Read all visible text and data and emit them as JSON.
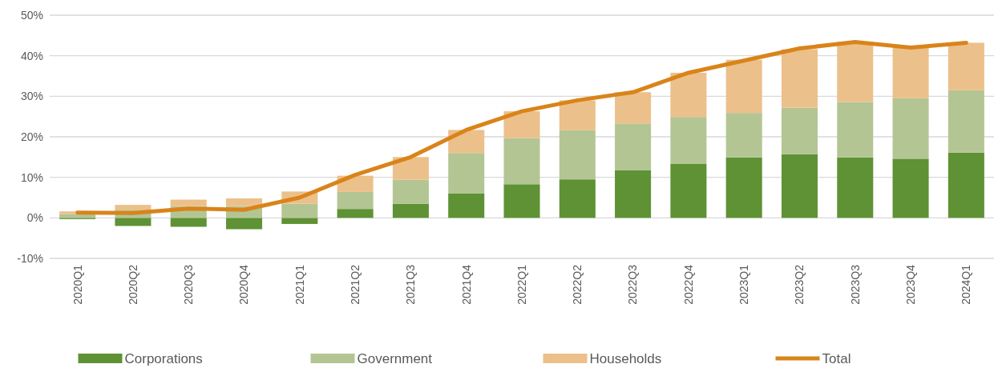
{
  "chart_data": {
    "type": "bar",
    "stacked": true,
    "categories": [
      "2020Q1",
      "2020Q2",
      "2020Q3",
      "2020Q4",
      "2021Q1",
      "2021Q2",
      "2021Q3",
      "2021Q4",
      "2022Q1",
      "2022Q2",
      "2022Q3",
      "2022Q4",
      "2023Q1",
      "2023Q2",
      "2023Q3",
      "2023Q4",
      "2024Q1"
    ],
    "series": [
      {
        "name": "Corporations",
        "color": "#5e9234",
        "values": [
          -0.3,
          -2.0,
          -2.2,
          -2.8,
          -1.5,
          2.2,
          3.5,
          6.0,
          8.3,
          9.5,
          11.8,
          13.3,
          14.9,
          15.7,
          14.9,
          14.6,
          16.1
        ]
      },
      {
        "name": "Government",
        "color": "#b4c594",
        "values": [
          0.9,
          2.0,
          2.9,
          2.9,
          3.5,
          4.2,
          5.9,
          10.0,
          11.4,
          12.1,
          11.5,
          11.6,
          11.0,
          11.5,
          13.7,
          14.9,
          15.4
        ]
      },
      {
        "name": "Households",
        "color": "#ecc08a",
        "values": [
          0.7,
          1.2,
          1.6,
          1.9,
          3.0,
          4.0,
          5.6,
          5.7,
          6.6,
          7.4,
          7.7,
          10.9,
          13.1,
          14.4,
          14.8,
          12.5,
          11.7
        ]
      },
      {
        "name": "Total",
        "type": "line",
        "color": "#d9841a",
        "values": [
          1.3,
          1.2,
          2.3,
          2.0,
          5.0,
          10.6,
          15.0,
          21.7,
          26.3,
          29.0,
          31.0,
          35.8,
          38.8,
          41.8,
          43.4,
          42.0,
          43.2
        ]
      }
    ],
    "ylim": [
      -10,
      50
    ],
    "yticks": [
      {
        "value": -10,
        "label": "-10%"
      },
      {
        "value": 0,
        "label": "0%"
      },
      {
        "value": 10,
        "label": "10%"
      },
      {
        "value": 20,
        "label": "20%"
      },
      {
        "value": 30,
        "label": "30%"
      },
      {
        "value": 40,
        "label": "40%"
      },
      {
        "value": 50,
        "label": "50%"
      }
    ],
    "grid": "y",
    "legend": "bottom"
  }
}
